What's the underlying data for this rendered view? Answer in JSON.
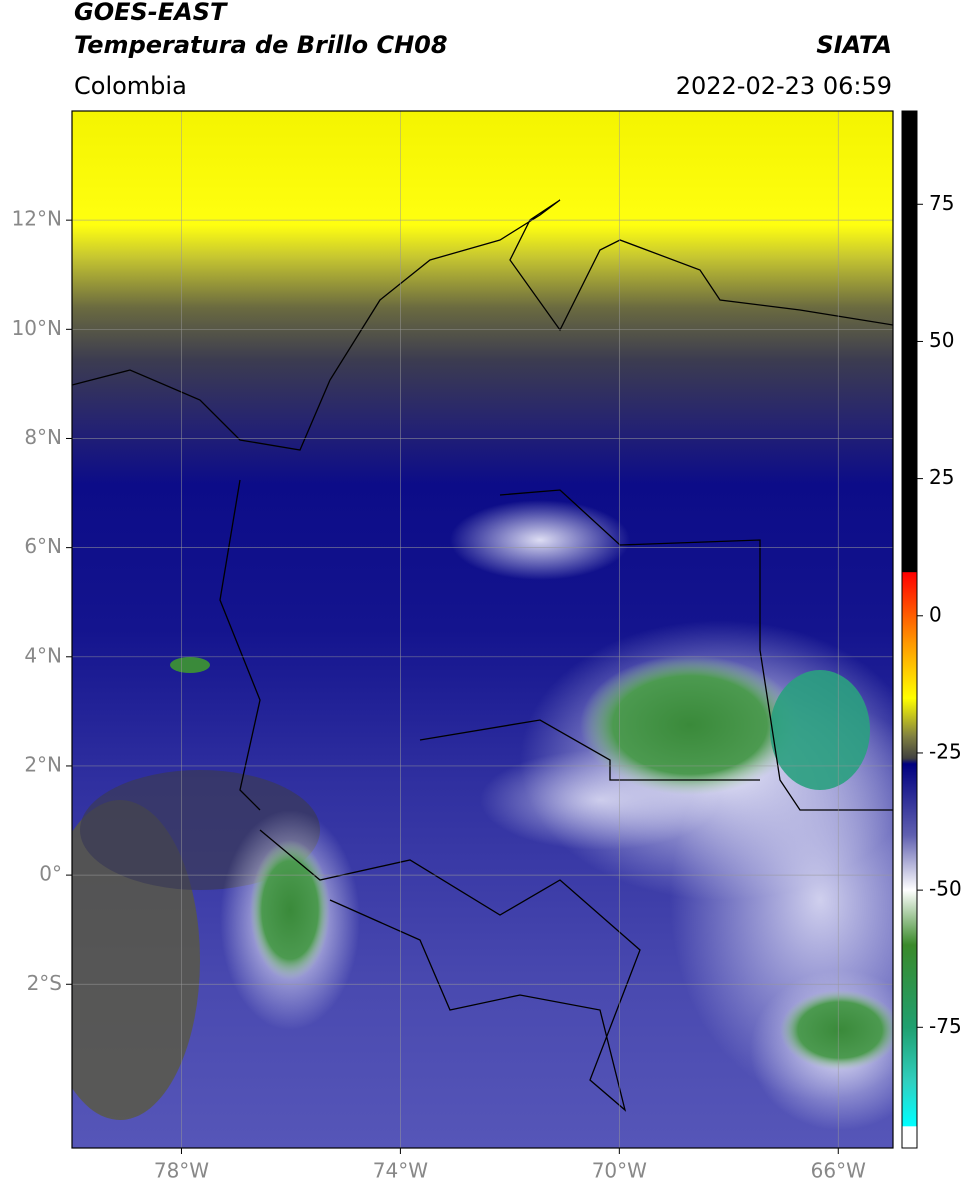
{
  "header": {
    "title": "GOES-EAST",
    "subtitle": "Temperatura de Brillo CH08",
    "source": "SIATA",
    "region": "Colombia",
    "datetime": "2022-02-23 06:59"
  },
  "map": {
    "xlim": [
      -80,
      -65
    ],
    "ylim": [
      -5,
      14
    ],
    "grid": true,
    "xticks": [
      {
        "value": -78,
        "label": "78°W"
      },
      {
        "value": -74,
        "label": "74°W"
      },
      {
        "value": -70,
        "label": "70°W"
      },
      {
        "value": -66,
        "label": "66°W"
      }
    ],
    "yticks": [
      {
        "value": 12,
        "label": "12°N"
      },
      {
        "value": 10,
        "label": "10°N"
      },
      {
        "value": 8,
        "label": "8°N"
      },
      {
        "value": 6,
        "label": "6°N"
      },
      {
        "value": 4,
        "label": "4°N"
      },
      {
        "value": 2,
        "label": "2°N"
      },
      {
        "value": 0,
        "label": "0°"
      },
      {
        "value": -2,
        "label": "2°S"
      }
    ]
  },
  "colorbar": {
    "lim": [
      -97,
      92
    ],
    "ticks": [
      75,
      50,
      25,
      0,
      -25,
      -50,
      -75
    ],
    "colorscale": [
      [
        92,
        "#000000"
      ],
      [
        8,
        "#000000"
      ],
      [
        7.9,
        "#ff0000"
      ],
      [
        -5,
        "#ff9900"
      ],
      [
        -15,
        "#ffff00"
      ],
      [
        -22,
        "#808040"
      ],
      [
        -26,
        "#404040"
      ],
      [
        -27,
        "#000080"
      ],
      [
        -40,
        "#6060b0"
      ],
      [
        -50,
        "#ffffff"
      ],
      [
        -60,
        "#3a8a2a"
      ],
      [
        -75,
        "#20a070"
      ],
      [
        -85,
        "#30d0c0"
      ],
      [
        -93,
        "#00ffff"
      ],
      [
        -93.1,
        "#ffffff"
      ],
      [
        -97,
        "#ffffff"
      ]
    ]
  }
}
